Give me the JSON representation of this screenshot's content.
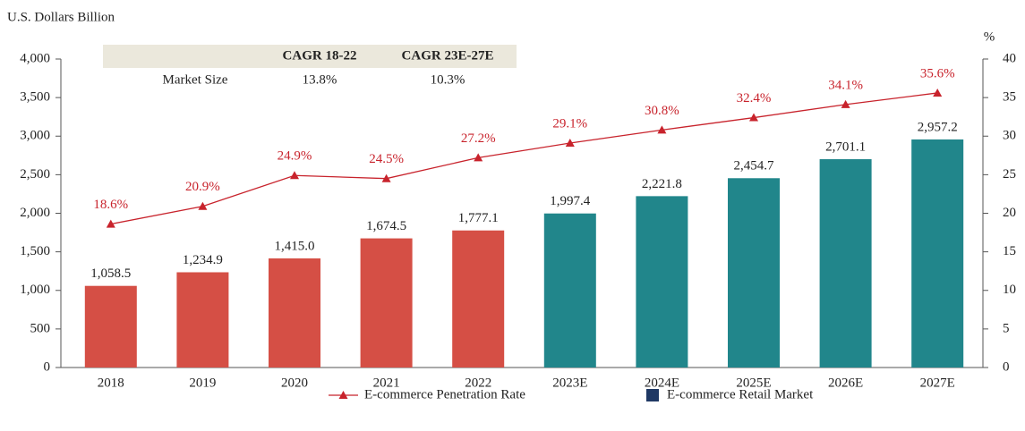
{
  "chart_data": {
    "type": "bar",
    "y_label": "U.S. Dollars Billion",
    "y2_label": "%",
    "categories": [
      "2018",
      "2019",
      "2020",
      "2021",
      "2022",
      "2023E",
      "2024E",
      "2025E",
      "2026E",
      "2027E"
    ],
    "series": [
      {
        "name": "E-commerce Retail Market",
        "type": "bar",
        "color": "#1f3864",
        "bar_colors": [
          "#d54f45",
          "#d54f45",
          "#d54f45",
          "#d54f45",
          "#d54f45",
          "#21868b",
          "#21868b",
          "#21868b",
          "#21868b",
          "#21868b"
        ],
        "values": [
          1058.5,
          1234.9,
          1415.0,
          1674.5,
          1777.1,
          1997.4,
          2221.8,
          2454.7,
          2701.1,
          2957.2
        ],
        "value_labels": [
          "1,058.5",
          "1,234.9",
          "1,415.0",
          "1,674.5",
          "1,777.1",
          "1,997.4",
          "2,221.8",
          "2,454.7",
          "2,701.1",
          "2,957.2"
        ]
      },
      {
        "name": "E-commerce Penetration Rate",
        "type": "line",
        "axis": "y2",
        "color": "#c8232c",
        "values": [
          18.6,
          20.9,
          24.9,
          24.5,
          27.2,
          29.1,
          30.8,
          32.4,
          34.1,
          35.6
        ],
        "value_labels": [
          "18.6%",
          "20.9%",
          "24.9%",
          "24.5%",
          "27.2%",
          "29.1%",
          "30.8%",
          "32.4%",
          "34.1%",
          "35.6%"
        ]
      }
    ],
    "ylim": [
      0,
      4000
    ],
    "yticks": [
      0,
      500,
      {
        "value": 1000,
        "label": "1,000"
      },
      {
        "value": 1500,
        "label": "1,500"
      },
      {
        "value": 2000,
        "label": "2,000"
      },
      {
        "value": 2500,
        "label": "2,500"
      },
      {
        "value": 3000,
        "label": "3,000"
      },
      {
        "value": 3500,
        "label": "3,500"
      },
      {
        "value": 4000,
        "label": "4,000"
      }
    ],
    "y2lim": [
      0,
      40
    ],
    "y2ticks": [
      0,
      5,
      10,
      15,
      20,
      25,
      30,
      35,
      40
    ],
    "table": {
      "columns": [
        "CAGR 18-22",
        "CAGR 23E-27E"
      ],
      "rows": [
        [
          "Market Size",
          "13.8%",
          "10.3%"
        ]
      ],
      "color": "#ebe8dc"
    },
    "grid": false
  }
}
